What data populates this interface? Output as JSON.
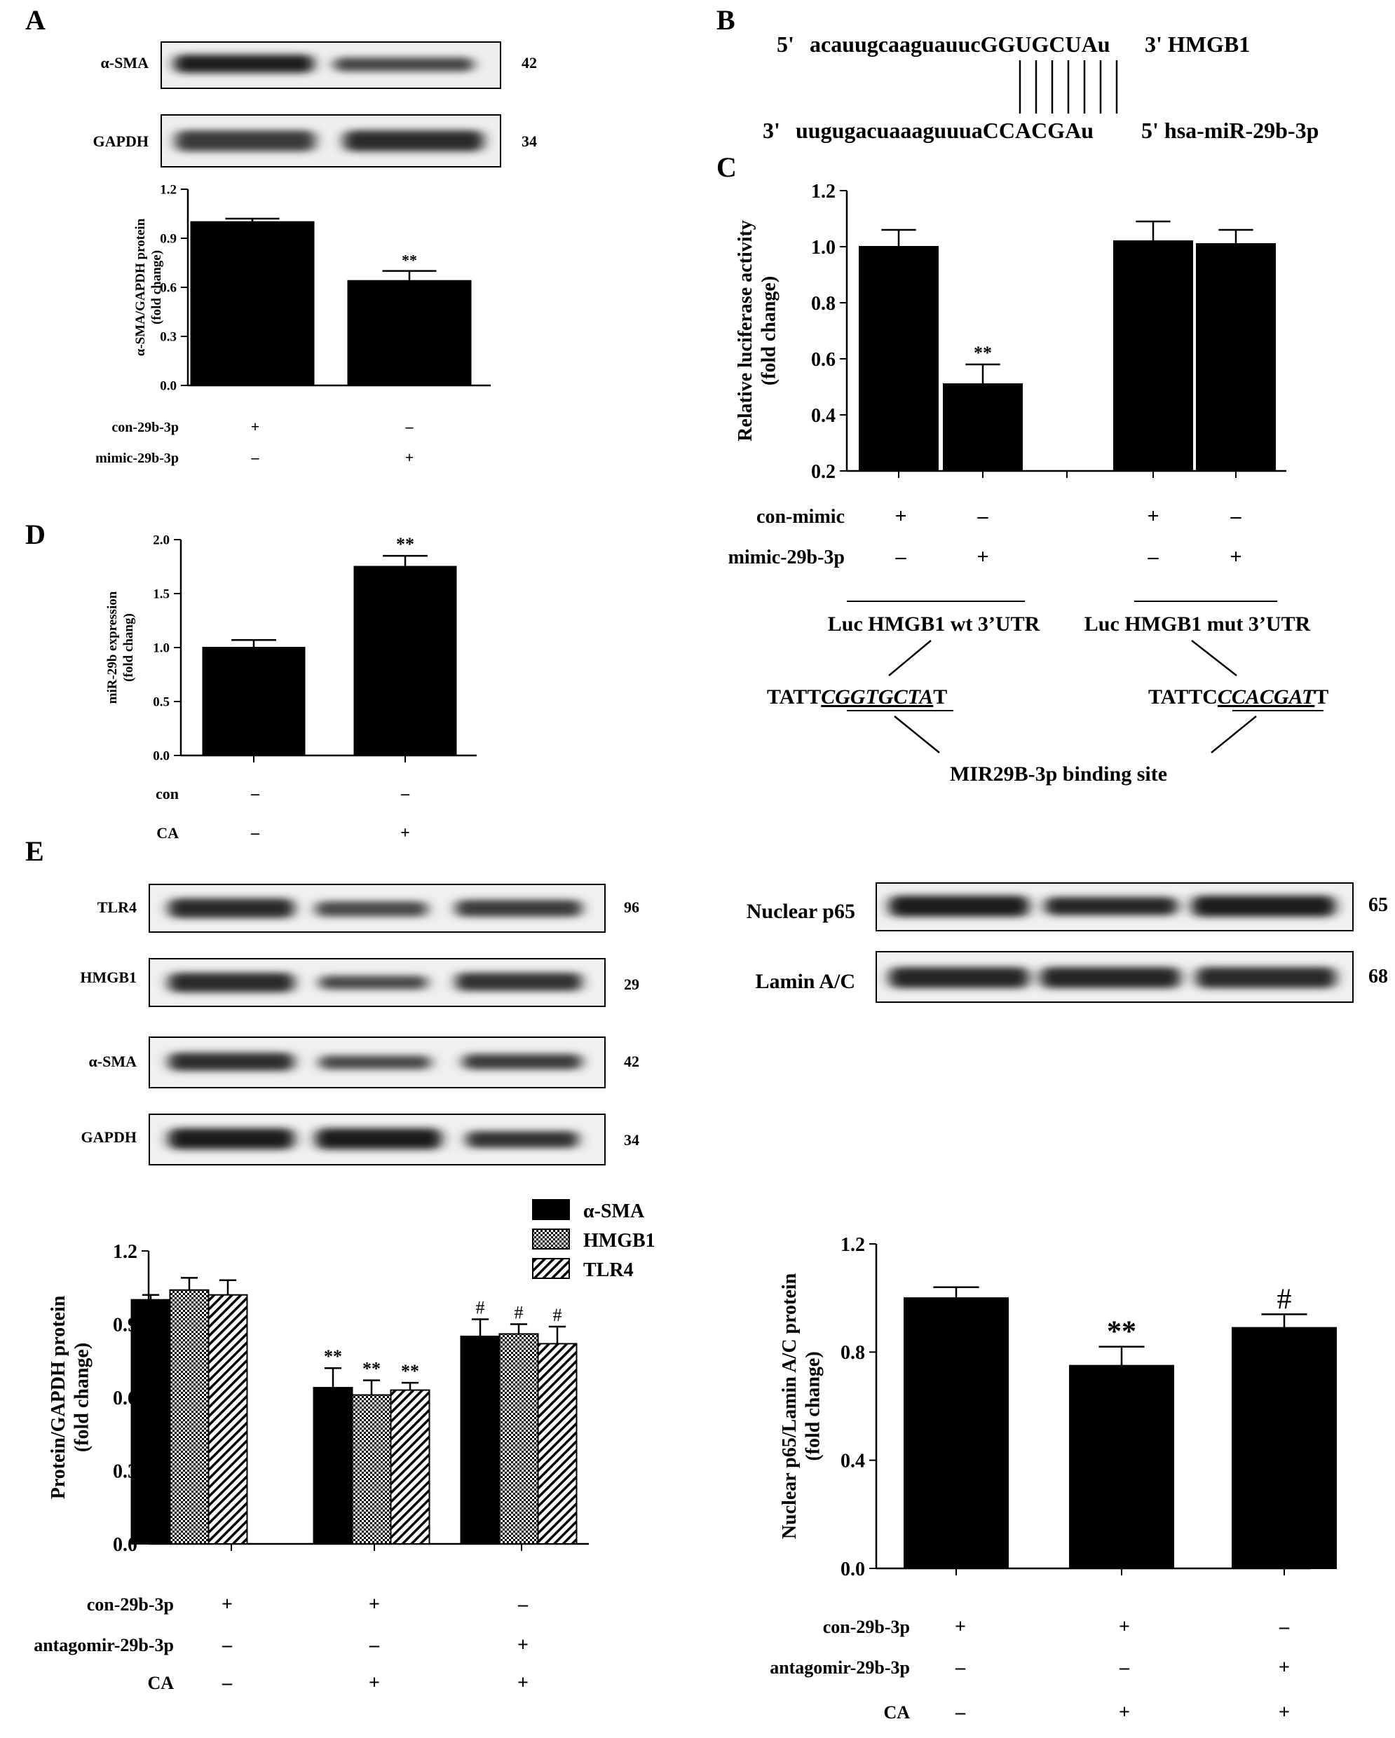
{
  "panel_labels": {
    "A": "A",
    "B": "B",
    "C": "C",
    "D": "D",
    "E": "E"
  },
  "panel_a": {
    "blots": [
      {
        "label": "α-SMA",
        "kda": "42"
      },
      {
        "label": "GAPDH",
        "kda": "34"
      }
    ],
    "conditions": [
      {
        "label": "con-29b-3p",
        "signs": [
          "+",
          "-"
        ]
      },
      {
        "label": "mimic-29b-3p",
        "signs": [
          "-",
          "+"
        ]
      }
    ]
  },
  "panel_b": {
    "top_prefix": "5'",
    "top_seq": "acauugcaaguauucGGUGCUAu",
    "top_suffix": "3' HMGB1",
    "bottom_prefix": "3'",
    "bottom_seq": "uugugacuaaaguuuaCCACGAu",
    "bottom_suffix": "5' hsa-miR-29b-3p"
  },
  "panel_c": {
    "conditions": [
      {
        "label": "con-mimic",
        "signs": [
          "+",
          "-",
          "+",
          "-"
        ]
      },
      {
        "label": "mimic-29b-3p",
        "signs": [
          "-",
          "+",
          "-",
          "+"
        ]
      }
    ],
    "groups": [
      "Luc HMGB1 wt 3’UTR",
      "Luc HMGB1 mut 3’UTR"
    ],
    "wt_seq": {
      "pre": "TATT",
      "mid": "CGGTGCTA",
      "post": "T"
    },
    "mut_seq": {
      "pre": "TATTC",
      "mid": "CCACGAT",
      "post": "T"
    },
    "binding_label": "MIR29B-3p binding site"
  },
  "panel_d": {
    "conditions": [
      {
        "label": "con",
        "signs": [
          "-",
          "-"
        ]
      },
      {
        "label": "CA",
        "signs": [
          "-",
          "+"
        ]
      }
    ]
  },
  "panel_e": {
    "blots_left": [
      {
        "label": "TLR4",
        "kda": "96"
      },
      {
        "label": "HMGB1",
        "kda": "29"
      },
      {
        "label": "α-SMA",
        "kda": "42"
      },
      {
        "label": "GAPDH",
        "kda": "34"
      }
    ],
    "blots_right": [
      {
        "label": "Nuclear p65",
        "kda": "65"
      },
      {
        "label": "Lamin A/C",
        "kda": "68"
      }
    ],
    "conditions_left": [
      {
        "label": "con-29b-3p",
        "signs": [
          "+",
          "+",
          "-"
        ]
      },
      {
        "label": "antagomir-29b-3p",
        "signs": [
          "-",
          "-",
          "+"
        ]
      },
      {
        "label": "CA",
        "signs": [
          "-",
          "+",
          "+"
        ]
      }
    ],
    "conditions_right": [
      {
        "label": "con-29b-3p",
        "signs": [
          "+",
          "+",
          "-"
        ]
      },
      {
        "label": "antagomir-29b-3p",
        "signs": [
          "-",
          "-",
          "+"
        ]
      },
      {
        "label": "CA",
        "signs": [
          "-",
          "+",
          "+"
        ]
      }
    ]
  },
  "chart_data": [
    {
      "id": "A",
      "type": "bar",
      "categories": [
        "1",
        "2"
      ],
      "values": [
        1.0,
        0.64
      ],
      "errors": [
        0.02,
        0.06
      ],
      "annotations": [
        "",
        "**"
      ],
      "ylabel": "α-SMA/GAPDH protein (fold change)",
      "ylim": [
        0,
        1.2
      ],
      "yticks": [
        0.0,
        0.3,
        0.6,
        0.9,
        1.2
      ],
      "ytick_labels": [
        "0.0",
        "0.3",
        "0.6",
        "0.9",
        "1.2"
      ]
    },
    {
      "id": "C",
      "type": "bar",
      "categories": [
        "1",
        "2",
        "3",
        "4"
      ],
      "values": [
        1.0,
        0.51,
        1.02,
        1.01
      ],
      "errors": [
        0.06,
        0.07,
        0.07,
        0.05
      ],
      "annotations": [
        "",
        "**",
        "",
        ""
      ],
      "ylabel": "Relative luciferase activity (fold change)",
      "ylim": [
        0.2,
        1.2
      ],
      "yticks": [
        0.2,
        0.4,
        0.6,
        0.8,
        1.0,
        1.2
      ],
      "ytick_labels": [
        "0.2",
        "0.4",
        "0.6",
        "0.8",
        "1.0",
        "1.2"
      ]
    },
    {
      "id": "D",
      "type": "bar",
      "categories": [
        "1",
        "2"
      ],
      "values": [
        1.0,
        1.75
      ],
      "errors": [
        0.07,
        0.1
      ],
      "annotations": [
        "",
        "**"
      ],
      "ylabel": "miR-29b expression (fold chang)",
      "ylim": [
        0,
        2.0
      ],
      "yticks": [
        0.0,
        0.5,
        1.0,
        1.5,
        2.0
      ],
      "ytick_labels": [
        "0.0",
        "0.5",
        "1.0",
        "1.5",
        "2.0"
      ]
    },
    {
      "id": "E_left",
      "type": "bar",
      "categories": [
        "1",
        "2",
        "3"
      ],
      "series": [
        {
          "name": "α-SMA",
          "values": [
            1.0,
            0.64,
            0.85
          ],
          "errors": [
            0.02,
            0.08,
            0.07
          ],
          "annotations": [
            "",
            "**",
            "#"
          ]
        },
        {
          "name": "HMGB1",
          "values": [
            1.04,
            0.61,
            0.86
          ],
          "errors": [
            0.05,
            0.06,
            0.04
          ],
          "annotations": [
            "",
            "**",
            "#"
          ]
        },
        {
          "name": "TLR4",
          "values": [
            1.02,
            0.63,
            0.82
          ],
          "errors": [
            0.06,
            0.03,
            0.07
          ],
          "annotations": [
            "",
            "**",
            "#"
          ]
        }
      ],
      "ylabel": "Protein/GAPDH protein (fold change)",
      "ylim": [
        0,
        1.2
      ],
      "yticks": [
        0.0,
        0.3,
        0.6,
        0.9,
        1.2
      ],
      "ytick_labels": [
        "0.0",
        "0.3",
        "0.6",
        "0.9",
        "1.2"
      ],
      "legend": "top-right"
    },
    {
      "id": "E_right",
      "type": "bar",
      "categories": [
        "1",
        "2",
        "3"
      ],
      "values": [
        1.0,
        0.75,
        0.89
      ],
      "errors": [
        0.04,
        0.07,
        0.05
      ],
      "annotations": [
        "",
        "**",
        "#"
      ],
      "ylabel": "Nuclear p65/Lamin A/C protein (fold change)",
      "ylim": [
        0,
        1.2
      ],
      "yticks": [
        0.0,
        0.4,
        0.8,
        1.2
      ],
      "ytick_labels": [
        "0.0",
        "0.4",
        "0.8",
        "1.2"
      ]
    }
  ]
}
